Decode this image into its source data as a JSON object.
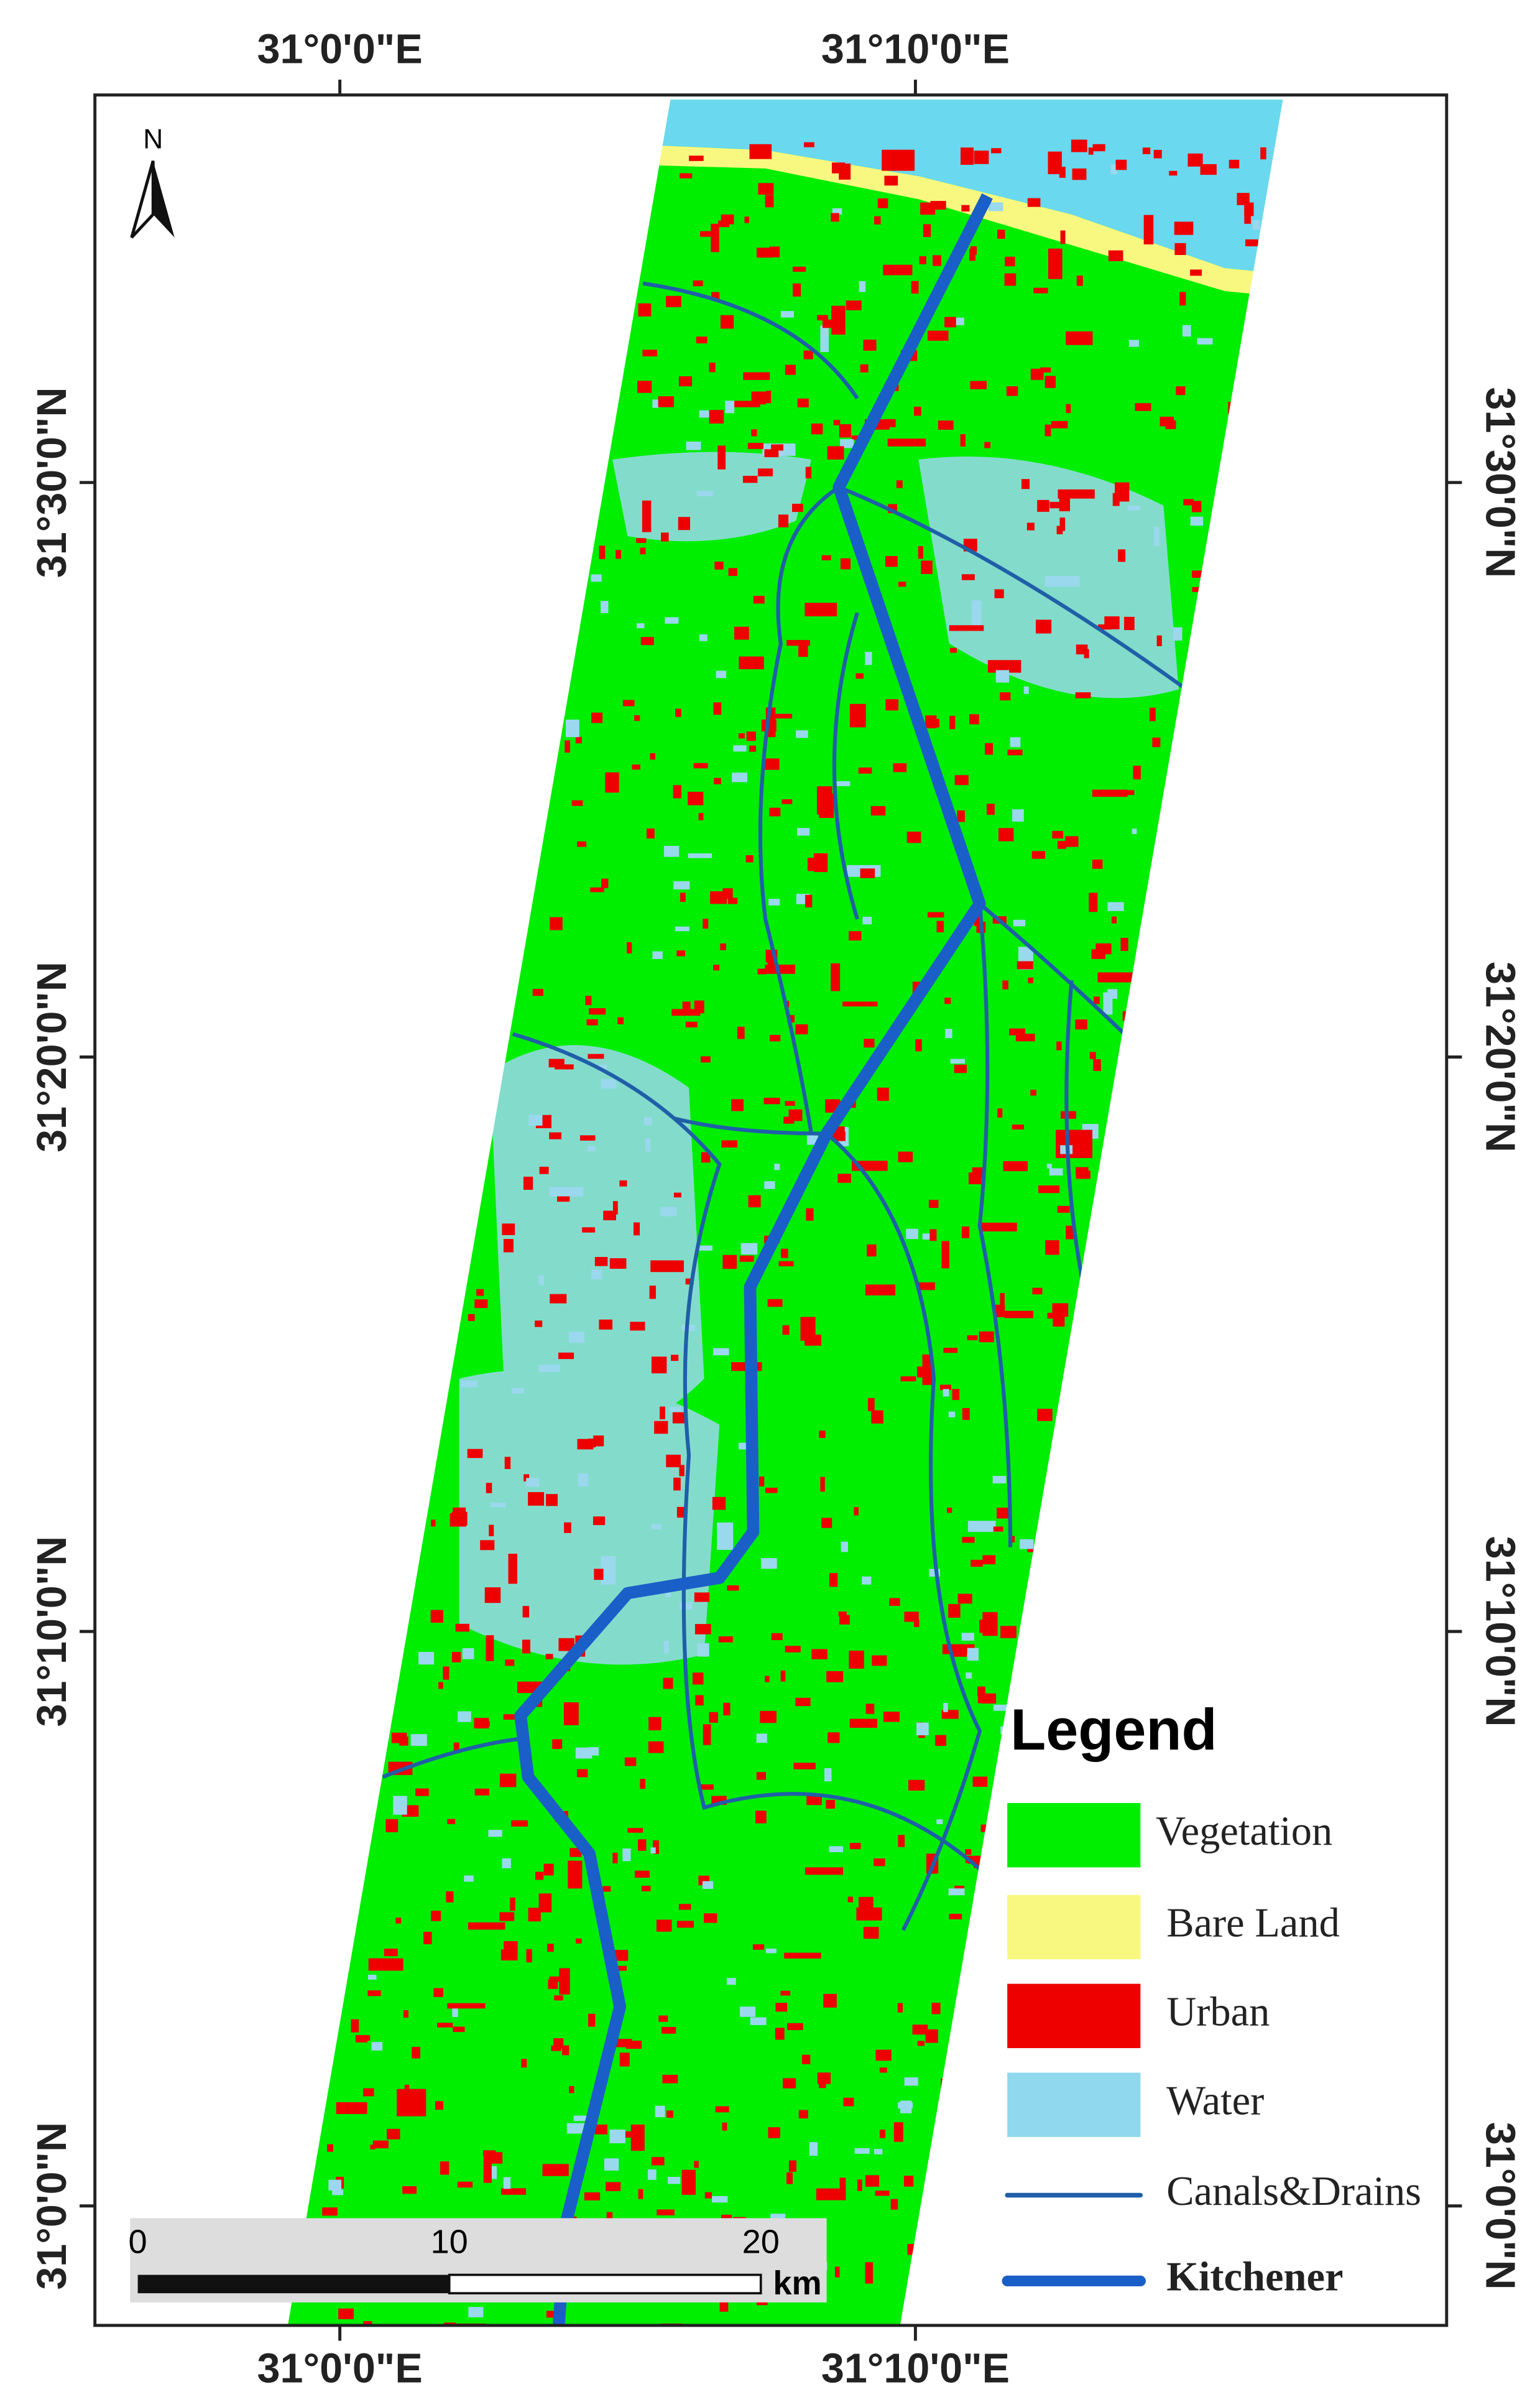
{
  "map": {
    "north_label": "N",
    "graticule": {
      "top": [
        "31°0'0\"E",
        "31°10'0\"E"
      ],
      "bottom": [
        "31°0'0\"E",
        "31°10'0\"E"
      ],
      "left": [
        "31°30'0\"N",
        "31°20'0\"N",
        "31°10'0\"N",
        "31°0'0\"N"
      ],
      "right": [
        "31°30'0\"N",
        "31°20'0\"N",
        "31°10'0\"N",
        "31°0'0\"N"
      ]
    },
    "legend": {
      "title": "Legend",
      "items": [
        {
          "label": "Vegetation",
          "color": "#00ee00",
          "kind": "area"
        },
        {
          "label": "Bare Land",
          "color": "#f8f880",
          "kind": "area"
        },
        {
          "label": "Urban",
          "color": "#ee0000",
          "kind": "area"
        },
        {
          "label": "Water",
          "color": "#90d8ee",
          "kind": "area"
        },
        {
          "label": "Canals&Drains",
          "color": "#1f5fa8",
          "kind": "line"
        },
        {
          "label": "Kitchener",
          "color": "#1a5fc8",
          "kind": "thick-line"
        }
      ]
    },
    "scale_bar": {
      "ticks": [
        0,
        10,
        20
      ],
      "unit": "km"
    }
  }
}
